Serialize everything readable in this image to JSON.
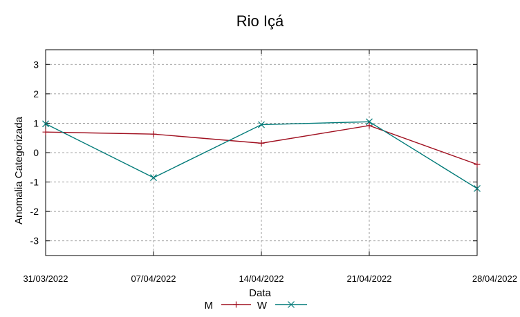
{
  "chart_data": {
    "type": "line",
    "title": "Rio Içá",
    "xlabel": "Data",
    "ylabel": "Anomalia Categorizada",
    "categories": [
      "31/03/2022",
      "07/04/2022",
      "14/04/2022",
      "21/04/2022",
      "28/04/2022"
    ],
    "ylim": [
      -3.5,
      3.5
    ],
    "yticks": [
      3,
      2,
      1,
      0,
      -1,
      -2,
      -3
    ],
    "ytick_labels": [
      "3",
      "2",
      "1",
      "0",
      "-1",
      "-2",
      "-3"
    ],
    "grid": true,
    "legend_position": "bottom",
    "series": [
      {
        "name": "M",
        "color": "#a01020",
        "marker": "plus",
        "values": [
          0.7,
          0.63,
          0.32,
          0.92,
          -0.4
        ]
      },
      {
        "name": "W",
        "color": "#007a78",
        "marker": "cross",
        "values": [
          0.98,
          -0.85,
          0.95,
          1.05,
          -1.22
        ]
      }
    ]
  }
}
